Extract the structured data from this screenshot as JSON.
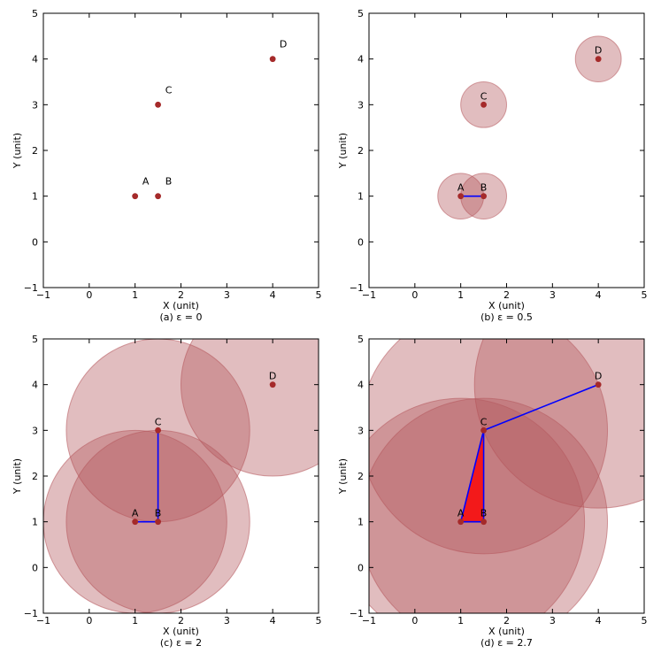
{
  "chart_data": [
    {
      "type": "scatter",
      "caption": "(a)  ε = 0",
      "xlabel": "X (unit)",
      "ylabel": "Y (unit)",
      "xlim": [
        -1,
        5
      ],
      "ylim": [
        -1,
        5
      ],
      "xticks": [
        "−1",
        "0",
        "1",
        "2",
        "3",
        "4",
        "5"
      ],
      "yticks": [
        "−1",
        "0",
        "1",
        "2",
        "3",
        "4",
        "5"
      ],
      "epsilon": 0,
      "points": [
        {
          "label": "A",
          "x": 1,
          "y": 1
        },
        {
          "label": "B",
          "x": 1.5,
          "y": 1
        },
        {
          "label": "C",
          "x": 1.5,
          "y": 3
        },
        {
          "label": "D",
          "x": 4,
          "y": 4
        }
      ],
      "edges": [],
      "triangles": []
    },
    {
      "type": "scatter",
      "caption": "(b)  ε = 0.5",
      "xlabel": "X (unit)",
      "ylabel": "Y (unit)",
      "xlim": [
        -1,
        5
      ],
      "ylim": [
        -1,
        5
      ],
      "xticks": [
        "−1",
        "0",
        "1",
        "2",
        "3",
        "4",
        "5"
      ],
      "yticks": [
        "−1",
        "0",
        "1",
        "2",
        "3",
        "4",
        "5"
      ],
      "epsilon": 0.5,
      "points": [
        {
          "label": "A",
          "x": 1,
          "y": 1
        },
        {
          "label": "B",
          "x": 1.5,
          "y": 1
        },
        {
          "label": "C",
          "x": 1.5,
          "y": 3
        },
        {
          "label": "D",
          "x": 4,
          "y": 4
        }
      ],
      "edges": [
        [
          "A",
          "B"
        ]
      ],
      "triangles": []
    },
    {
      "type": "scatter",
      "caption": "(c)  ε = 2",
      "xlabel": "X (unit)",
      "ylabel": "Y (unit)",
      "xlim": [
        -1,
        5
      ],
      "ylim": [
        -1,
        5
      ],
      "xticks": [
        "−1",
        "0",
        "1",
        "2",
        "3",
        "4",
        "5"
      ],
      "yticks": [
        "−1",
        "0",
        "1",
        "2",
        "3",
        "4",
        "5"
      ],
      "epsilon": 2,
      "points": [
        {
          "label": "A",
          "x": 1,
          "y": 1
        },
        {
          "label": "B",
          "x": 1.5,
          "y": 1
        },
        {
          "label": "C",
          "x": 1.5,
          "y": 3
        },
        {
          "label": "D",
          "x": 4,
          "y": 4
        }
      ],
      "edges": [
        [
          "A",
          "B"
        ],
        [
          "B",
          "C"
        ]
      ],
      "triangles": []
    },
    {
      "type": "scatter",
      "caption": "(d)  ε = 2.7",
      "xlabel": "X (unit)",
      "ylabel": "Y (unit)",
      "xlim": [
        -1,
        5
      ],
      "ylim": [
        -1,
        5
      ],
      "xticks": [
        "−1",
        "0",
        "1",
        "2",
        "3",
        "4",
        "5"
      ],
      "yticks": [
        "−1",
        "0",
        "1",
        "2",
        "3",
        "4",
        "5"
      ],
      "epsilon": 2.7,
      "points": [
        {
          "label": "A",
          "x": 1,
          "y": 1
        },
        {
          "label": "B",
          "x": 1.5,
          "y": 1
        },
        {
          "label": "C",
          "x": 1.5,
          "y": 3
        },
        {
          "label": "D",
          "x": 4,
          "y": 4
        }
      ],
      "edges": [
        [
          "A",
          "B"
        ],
        [
          "B",
          "C"
        ],
        [
          "A",
          "C"
        ],
        [
          "C",
          "D"
        ]
      ],
      "triangles": [
        [
          "A",
          "B",
          "C"
        ]
      ]
    }
  ],
  "colors": {
    "point": "#a52a2a",
    "ball_fill": "#b55a5f",
    "ball_stroke": "#b4545a",
    "edge": "#0000ff",
    "triangle": "#ff0000"
  }
}
